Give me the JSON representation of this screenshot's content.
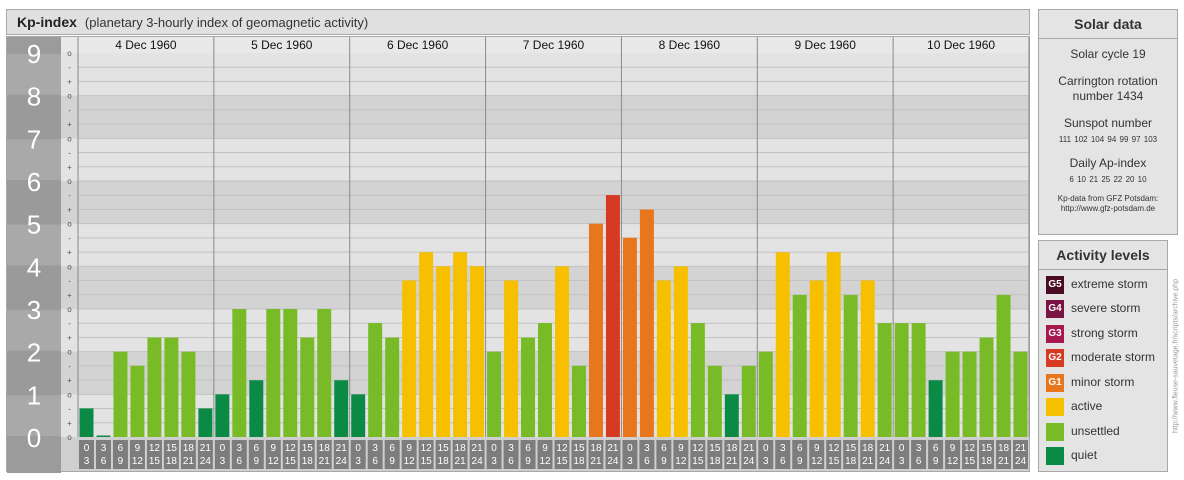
{
  "header": {
    "title": "Kp-index",
    "subtitle": "(planetary 3-hourly index of geomagnetic activity)"
  },
  "solar": {
    "title": "Solar data",
    "cycle": "Solar cycle 19",
    "carrington_line1": "Carrington rotation",
    "carrington_line2": "number 1434",
    "sunspot_label": "Sunspot number",
    "sunspot_values": "111 102 104 94 99 97 103",
    "ap_label": "Daily Ap-index",
    "ap_values": "6 10 21 25 22 20 10",
    "source_line1": "Kp-data from GFZ Potsdam:",
    "source_line2": "http://www.gfz-potsdam.de"
  },
  "levels": {
    "title": "Activity levels",
    "items": [
      {
        "badge": "G5",
        "label": "extreme storm",
        "color": "#4a0c24"
      },
      {
        "badge": "G4",
        "label": "severe storm",
        "color": "#7a1244"
      },
      {
        "badge": "G3",
        "label": "strong storm",
        "color": "#a8164e"
      },
      {
        "badge": "G2",
        "label": "moderate storm",
        "color": "#d73a22"
      },
      {
        "badge": "G1",
        "label": "minor storm",
        "color": "#e8761c"
      },
      {
        "badge": "",
        "label": "active",
        "color": "#f6c000"
      },
      {
        "badge": "",
        "label": "unsettled",
        "color": "#78bb26"
      },
      {
        "badge": "",
        "label": "quiet",
        "color": "#0a8a45"
      }
    ]
  },
  "credit": "http://www.fleuse-sauvetage.fr/scripts/archive.php",
  "chart_data": {
    "type": "bar",
    "title": "Kp-index",
    "ylim": [
      0,
      9
    ],
    "y_ticks": [
      "0",
      "1",
      "2",
      "3",
      "4",
      "5",
      "6",
      "7",
      "8",
      "9"
    ],
    "sub_ticks": [
      "o",
      "-",
      "+"
    ],
    "days": [
      "4 Dec 1960",
      "5 Dec 1960",
      "6 Dec 1960",
      "7 Dec 1960",
      "8 Dec 1960",
      "9 Dec 1960",
      "10 Dec 1960"
    ],
    "interval_labels": [
      [
        "0",
        "3"
      ],
      [
        "3",
        "6"
      ],
      [
        "6",
        "9"
      ],
      [
        "9",
        "12"
      ],
      [
        "12",
        "15"
      ],
      [
        "15",
        "18"
      ],
      [
        "18",
        "21"
      ],
      [
        "21",
        "24"
      ]
    ],
    "values": [
      [
        0.67,
        0.0,
        2.0,
        1.67,
        2.33,
        2.33,
        2.0,
        0.67
      ],
      [
        1.0,
        3.0,
        1.33,
        3.0,
        3.0,
        2.33,
        3.0,
        1.33
      ],
      [
        1.0,
        2.67,
        2.33,
        3.67,
        4.33,
        4.0,
        4.33,
        4.0
      ],
      [
        2.0,
        3.67,
        2.33,
        2.67,
        4.0,
        1.67,
        5.0,
        5.67
      ],
      [
        4.67,
        5.33,
        3.67,
        4.0,
        2.67,
        1.67,
        1.0,
        1.67
      ],
      [
        2.0,
        4.33,
        3.33,
        3.67,
        4.33,
        3.33,
        3.67,
        2.67
      ],
      [
        2.67,
        2.67,
        1.33,
        2.0,
        2.0,
        2.33,
        3.33,
        2.0
      ]
    ],
    "colors": {
      "quiet": "#0a8a45",
      "unsettled": "#78bb26",
      "active": "#f6c000",
      "minor_storm": "#e8761c",
      "moderate_storm": "#d73a22"
    }
  }
}
